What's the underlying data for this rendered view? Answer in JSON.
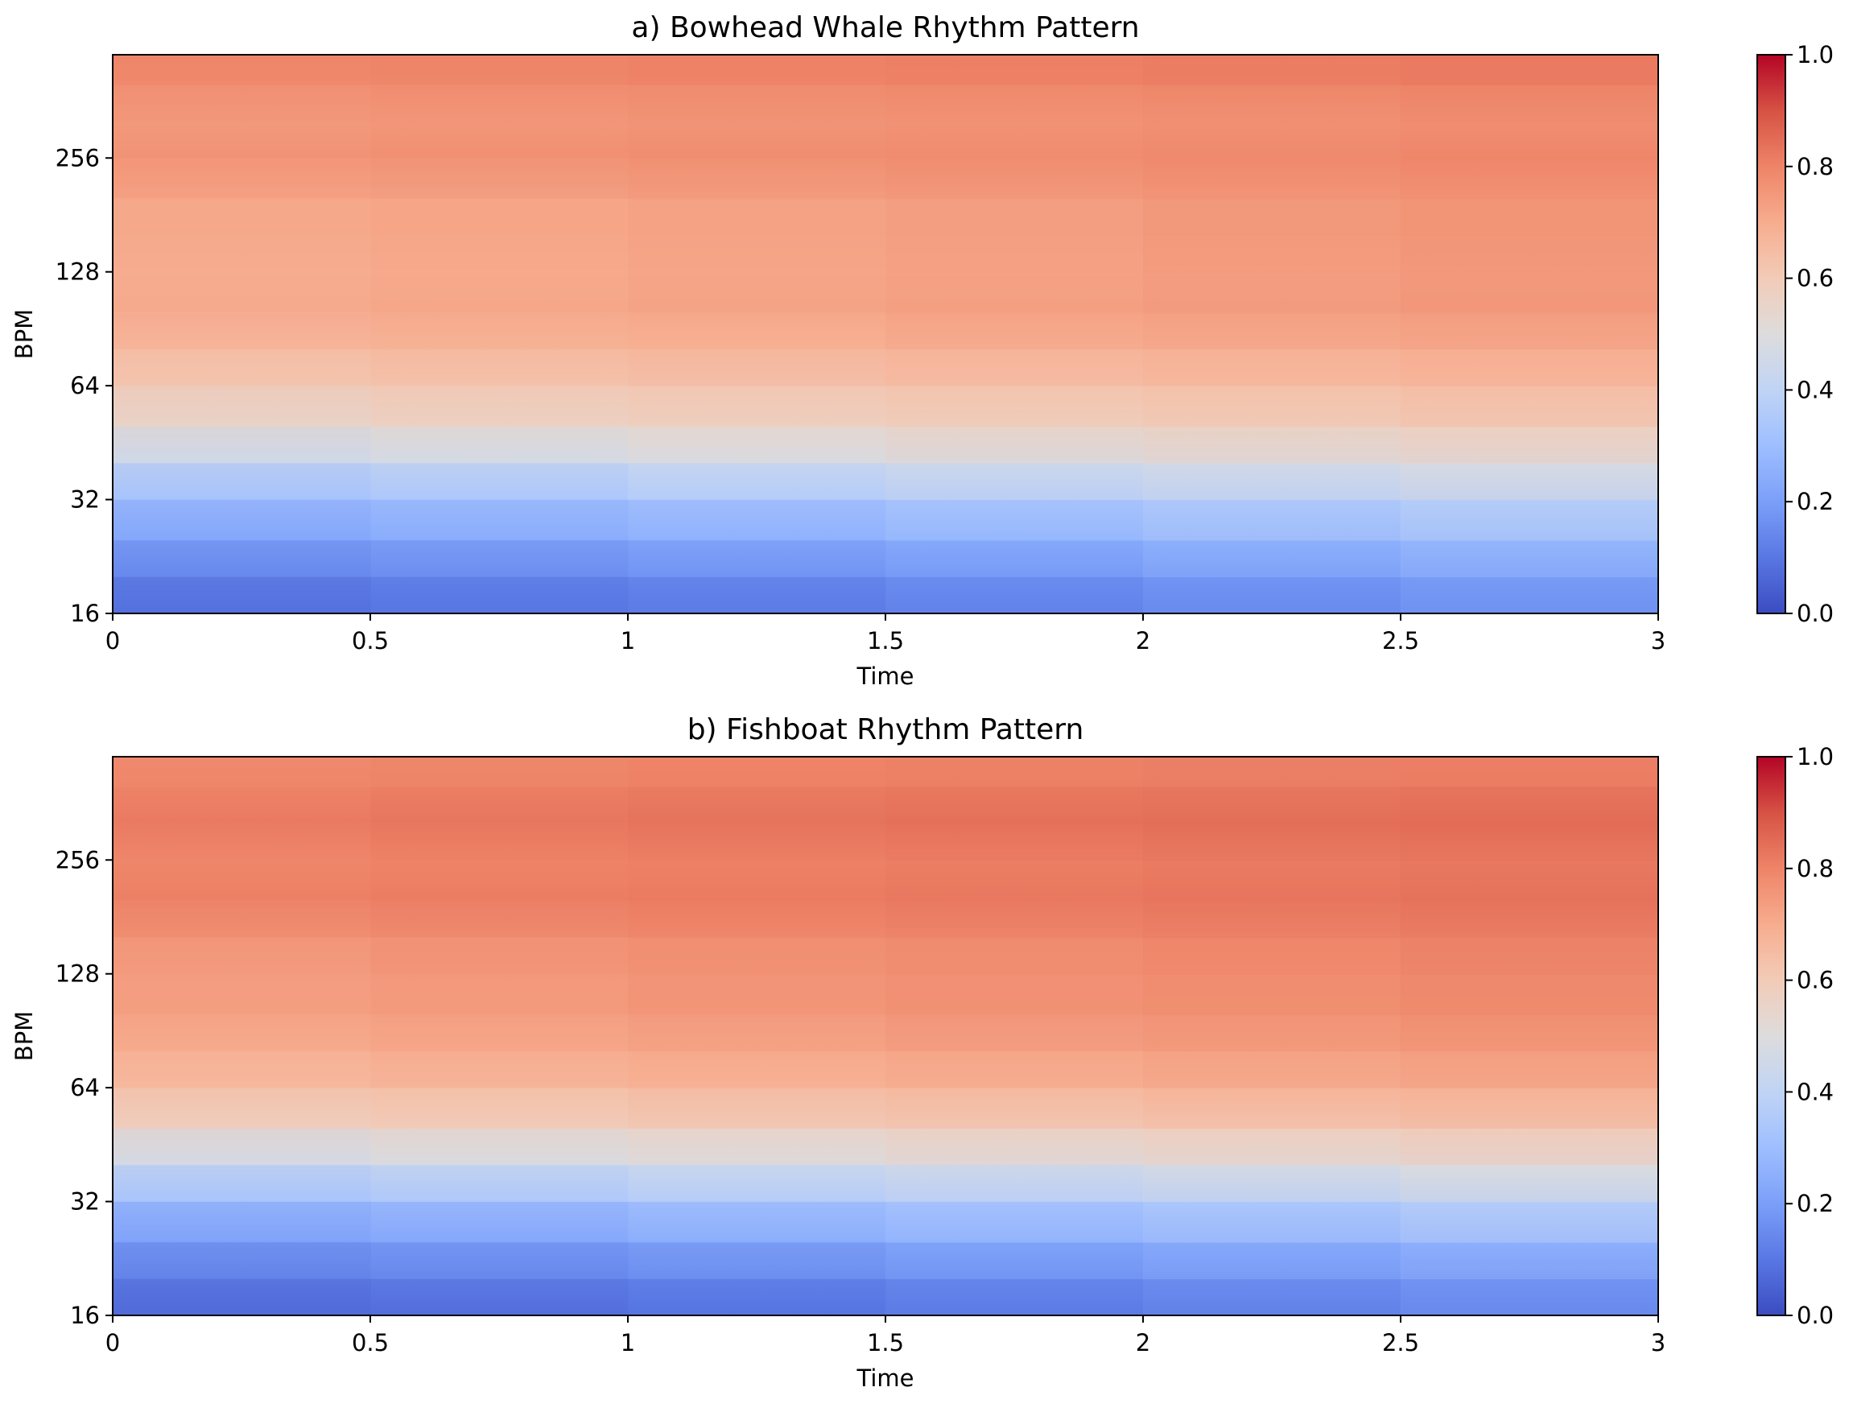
{
  "colormap": {
    "name": "coolwarm",
    "stops": [
      "#3b4cc0",
      "#5977e3",
      "#7b9ff9",
      "#9ebeff",
      "#c0d4f5",
      "#dddcdc",
      "#f2cbb7",
      "#f7ac8e",
      "#ee8468",
      "#d65244",
      "#b40426"
    ]
  },
  "chart_data": [
    {
      "type": "heatmap",
      "title": "a) Bowhead Whale Rhythm Pattern",
      "xlabel": "Time",
      "ylabel": "BPM",
      "x_ticks": [
        0,
        0.5,
        1,
        1.5,
        2,
        2.5,
        3
      ],
      "x_tick_labels": [
        "0",
        "0.5",
        "1",
        "1.5",
        "2",
        "2.5",
        "3"
      ],
      "y_ticks": [
        16,
        32,
        64,
        128,
        256
      ],
      "y_tick_labels": [
        "16",
        "32",
        "64",
        "128",
        "256"
      ],
      "y_scale": "log2",
      "xlim": [
        0,
        3
      ],
      "ylim": [
        16,
        480
      ],
      "colorbar": {
        "range": [
          0,
          1
        ],
        "ticks": [
          0,
          0.2,
          0.4,
          0.6,
          0.8,
          1.0
        ],
        "tick_labels": [
          "0.0",
          "0.2",
          "0.4",
          "0.6",
          "0.8",
          "1.0"
        ]
      },
      "time_samples": [
        0,
        0.5,
        1,
        1.5,
        2,
        2.5,
        3
      ],
      "rows": [
        {
          "bpm": 16,
          "values": [
            0.03,
            0.05,
            0.07,
            0.1,
            0.13,
            0.17,
            0.2
          ]
        },
        {
          "bpm": 20,
          "values": [
            0.08,
            0.1,
            0.12,
            0.15,
            0.19,
            0.23,
            0.26
          ]
        },
        {
          "bpm": 25,
          "values": [
            0.16,
            0.18,
            0.21,
            0.24,
            0.28,
            0.32,
            0.35
          ]
        },
        {
          "bpm": 32,
          "values": [
            0.24,
            0.26,
            0.3,
            0.34,
            0.38,
            0.42,
            0.46
          ]
        },
        {
          "bpm": 40,
          "values": [
            0.36,
            0.39,
            0.43,
            0.47,
            0.5,
            0.53,
            0.55
          ]
        },
        {
          "bpm": 50,
          "values": [
            0.5,
            0.52,
            0.55,
            0.57,
            0.59,
            0.61,
            0.63
          ]
        },
        {
          "bpm": 64,
          "values": [
            0.58,
            0.6,
            0.62,
            0.63,
            0.65,
            0.67,
            0.69
          ]
        },
        {
          "bpm": 80,
          "values": [
            0.63,
            0.65,
            0.66,
            0.68,
            0.7,
            0.71,
            0.73
          ]
        },
        {
          "bpm": 100,
          "values": [
            0.68,
            0.7,
            0.71,
            0.73,
            0.75,
            0.76,
            0.78
          ]
        },
        {
          "bpm": 128,
          "values": [
            0.66,
            0.68,
            0.7,
            0.72,
            0.74,
            0.76,
            0.78
          ]
        },
        {
          "bpm": 160,
          "values": [
            0.68,
            0.7,
            0.71,
            0.73,
            0.75,
            0.77,
            0.79
          ]
        },
        {
          "bpm": 200,
          "values": [
            0.68,
            0.7,
            0.71,
            0.73,
            0.75,
            0.77,
            0.79
          ]
        },
        {
          "bpm": 256,
          "values": [
            0.76,
            0.77,
            0.78,
            0.79,
            0.8,
            0.81,
            0.82
          ]
        },
        {
          "bpm": 320,
          "values": [
            0.72,
            0.73,
            0.74,
            0.75,
            0.76,
            0.77,
            0.79
          ]
        },
        {
          "bpm": 400,
          "values": [
            0.77,
            0.78,
            0.79,
            0.8,
            0.81,
            0.82,
            0.83
          ]
        },
        {
          "bpm": 480,
          "values": [
            0.78,
            0.79,
            0.8,
            0.81,
            0.82,
            0.83,
            0.84
          ]
        }
      ]
    },
    {
      "type": "heatmap",
      "title": "b) Fishboat Rhythm Pattern",
      "xlabel": "Time",
      "ylabel": "BPM",
      "x_ticks": [
        0,
        0.5,
        1,
        1.5,
        2,
        2.5,
        3
      ],
      "x_tick_labels": [
        "0",
        "0.5",
        "1",
        "1.5",
        "2",
        "2.5",
        "3"
      ],
      "y_ticks": [
        16,
        32,
        64,
        128,
        256
      ],
      "y_tick_labels": [
        "16",
        "32",
        "64",
        "128",
        "256"
      ],
      "y_scale": "log2",
      "xlim": [
        0,
        3
      ],
      "ylim": [
        16,
        480
      ],
      "colorbar": {
        "range": [
          0,
          1
        ],
        "ticks": [
          0,
          0.2,
          0.4,
          0.6,
          0.8,
          1.0
        ],
        "tick_labels": [
          "0.0",
          "0.2",
          "0.4",
          "0.6",
          "0.8",
          "1.0"
        ]
      },
      "time_samples": [
        0,
        0.5,
        1,
        1.5,
        2,
        2.5,
        3
      ],
      "rows": [
        {
          "bpm": 16,
          "values": [
            0.02,
            0.04,
            0.06,
            0.08,
            0.11,
            0.14,
            0.17
          ]
        },
        {
          "bpm": 20,
          "values": [
            0.07,
            0.09,
            0.11,
            0.14,
            0.17,
            0.21,
            0.24
          ]
        },
        {
          "bpm": 25,
          "values": [
            0.14,
            0.16,
            0.19,
            0.22,
            0.26,
            0.3,
            0.34
          ]
        },
        {
          "bpm": 32,
          "values": [
            0.24,
            0.26,
            0.3,
            0.34,
            0.38,
            0.42,
            0.46
          ]
        },
        {
          "bpm": 40,
          "values": [
            0.38,
            0.41,
            0.44,
            0.48,
            0.51,
            0.54,
            0.57
          ]
        },
        {
          "bpm": 50,
          "values": [
            0.52,
            0.54,
            0.57,
            0.59,
            0.61,
            0.63,
            0.65
          ]
        },
        {
          "bpm": 64,
          "values": [
            0.62,
            0.64,
            0.66,
            0.68,
            0.7,
            0.72,
            0.73
          ]
        },
        {
          "bpm": 80,
          "values": [
            0.66,
            0.68,
            0.7,
            0.72,
            0.74,
            0.76,
            0.78
          ]
        },
        {
          "bpm": 100,
          "values": [
            0.7,
            0.72,
            0.74,
            0.76,
            0.78,
            0.79,
            0.81
          ]
        },
        {
          "bpm": 128,
          "values": [
            0.71,
            0.73,
            0.75,
            0.77,
            0.79,
            0.8,
            0.82
          ]
        },
        {
          "bpm": 160,
          "values": [
            0.73,
            0.75,
            0.77,
            0.78,
            0.8,
            0.81,
            0.83
          ]
        },
        {
          "bpm": 200,
          "values": [
            0.8,
            0.81,
            0.82,
            0.83,
            0.84,
            0.85,
            0.86
          ]
        },
        {
          "bpm": 256,
          "values": [
            0.77,
            0.78,
            0.79,
            0.8,
            0.81,
            0.82,
            0.83
          ]
        },
        {
          "bpm": 320,
          "values": [
            0.8,
            0.82,
            0.84,
            0.85,
            0.86,
            0.87,
            0.88
          ]
        },
        {
          "bpm": 400,
          "values": [
            0.78,
            0.79,
            0.8,
            0.81,
            0.82,
            0.82,
            0.83
          ]
        },
        {
          "bpm": 480,
          "values": [
            0.77,
            0.78,
            0.79,
            0.8,
            0.81,
            0.81,
            0.82
          ]
        }
      ]
    }
  ]
}
